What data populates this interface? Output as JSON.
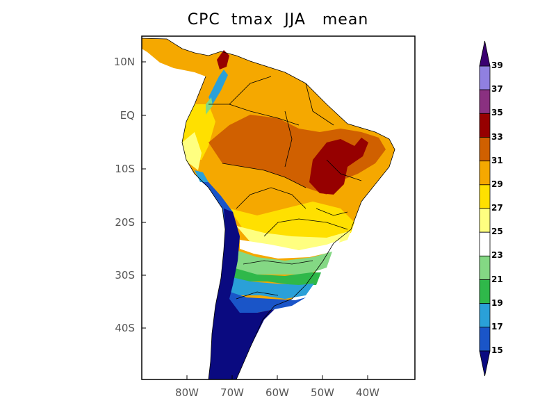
{
  "title": "CPC  tmax  JJA   mean",
  "map": {
    "y_ticks": [
      "10N",
      "EQ",
      "10S",
      "20S",
      "30S",
      "40S"
    ],
    "x_ticks": [
      "80W",
      "70W",
      "60W",
      "50W",
      "40W"
    ]
  },
  "colorbar": {
    "levels": [
      "15",
      "17",
      "19",
      "21",
      "23",
      "25",
      "27",
      "29",
      "31",
      "33",
      "35",
      "37",
      "39"
    ],
    "colors": {
      "below_15": "#0a0a80",
      "15_17": "#1a55c8",
      "17_19": "#2aa0d8",
      "19_21": "#2fb84a",
      "21_23": "#84d884",
      "23_25": "#ffffff",
      "25_27": "#ffff80",
      "27_29": "#ffe000",
      "29_31": "#f5a800",
      "31_33": "#d06000",
      "33_35": "#960000",
      "35_37": "#8a3080",
      "37_39": "#9080e0",
      "above_39": "#3a0070"
    }
  }
}
